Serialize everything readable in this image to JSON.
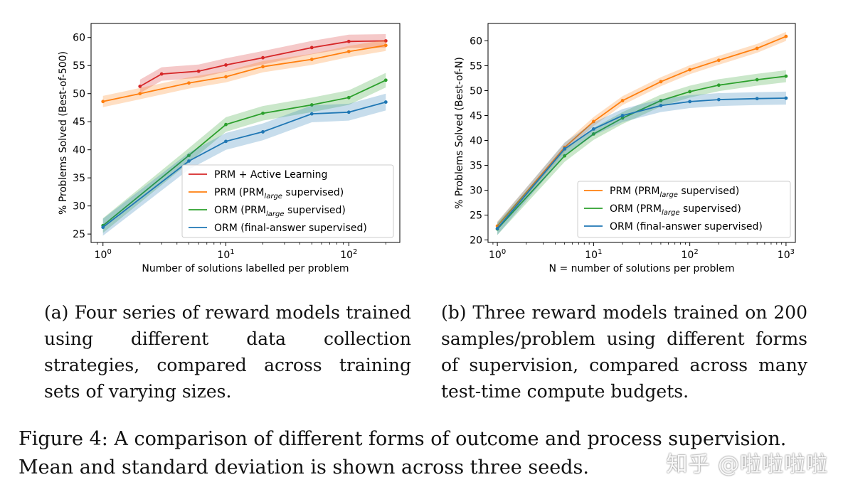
{
  "chart_data": [
    {
      "type": "line",
      "id": "a",
      "xscale": "log",
      "xlim": [
        0.8,
        260
      ],
      "ylim": [
        23.5,
        62.5
      ],
      "xticks": [
        1,
        10,
        100
      ],
      "xtick_labels": [
        "10^0",
        "10^1",
        "10^2"
      ],
      "yticks": [
        25,
        30,
        35,
        40,
        45,
        50,
        55,
        60
      ],
      "xlabel": "Number of solutions labelled per problem",
      "ylabel": "% Problems Solved (Best-of-500)",
      "legend_position": "lower-right",
      "series": [
        {
          "name": "PRM + Active Learning",
          "color": "#d62728",
          "x": [
            2,
            3,
            6,
            10,
            20,
            50,
            100,
            200
          ],
          "y": [
            51.3,
            53.5,
            54.0,
            55.1,
            56.4,
            58.2,
            59.3,
            59.4
          ],
          "band": 1.2
        },
        {
          "name": "PRM (PRMlarge supervised)",
          "color": "#ff7f0e",
          "x": [
            1,
            2,
            5,
            10,
            20,
            50,
            100,
            200
          ],
          "y": [
            48.6,
            50.0,
            51.9,
            53.0,
            54.8,
            56.1,
            57.5,
            58.6
          ],
          "band": 1.0
        },
        {
          "name": "ORM (PRMlarge supervised)",
          "color": "#2ca02c",
          "x": [
            1,
            5,
            10,
            20,
            50,
            100,
            200
          ],
          "y": [
            26.5,
            39.0,
            44.5,
            46.5,
            48.0,
            49.3,
            52.4
          ],
          "band": 1.3
        },
        {
          "name": "ORM (final-answer supervised)",
          "color": "#1f77b4",
          "x": [
            1,
            5,
            10,
            20,
            50,
            100,
            200
          ],
          "y": [
            26.2,
            38.0,
            41.5,
            43.2,
            46.4,
            46.7,
            48.5
          ],
          "band": 1.5
        }
      ]
    },
    {
      "type": "line",
      "id": "b",
      "xscale": "log",
      "xlim": [
        0.8,
        1250
      ],
      "ylim": [
        19.5,
        63.5
      ],
      "xticks": [
        1,
        10,
        100,
        1000
      ],
      "xtick_labels": [
        "10^0",
        "10^1",
        "10^2",
        "10^3"
      ],
      "yticks": [
        20,
        25,
        30,
        35,
        40,
        45,
        50,
        55,
        60
      ],
      "xlabel": "N = number of solutions per problem",
      "ylabel": "% Problems Solved (Best-of-N)",
      "legend_position": "lower-right",
      "series": [
        {
          "name": "PRM (PRMlarge supervised)",
          "color": "#ff7f0e",
          "x": [
            1,
            5,
            10,
            20,
            50,
            100,
            200,
            500,
            1000
          ],
          "y": [
            22.8,
            38.6,
            43.8,
            48.0,
            51.8,
            54.2,
            56.1,
            58.5,
            60.9
          ],
          "band": 0.9
        },
        {
          "name": "ORM (PRMlarge supervised)",
          "color": "#2ca02c",
          "x": [
            1,
            5,
            10,
            20,
            50,
            100,
            200,
            500,
            1000
          ],
          "y": [
            22.2,
            36.9,
            41.3,
            44.5,
            48.0,
            49.8,
            51.1,
            52.2,
            52.9
          ],
          "band": 1.2
        },
        {
          "name": "ORM (final-answer supervised)",
          "color": "#1f77b4",
          "x": [
            1,
            5,
            10,
            20,
            50,
            100,
            200,
            500,
            1000
          ],
          "y": [
            22.3,
            38.3,
            42.3,
            45.0,
            47.0,
            47.8,
            48.2,
            48.4,
            48.5
          ],
          "band": 1.3
        }
      ]
    }
  ],
  "legend_labels": {
    "prm_active": "PRM + Active Learning",
    "prm_prefix": "PRM (PRM",
    "orm_prefix": "ORM (PRM",
    "sub_large": "large",
    "suffix_supervised": " supervised)",
    "orm_final": "ORM (final-answer supervised)"
  },
  "caption_a": "(a) Four series of reward models trained using different data collection strategies, compared across training sets of varying sizes.",
  "caption_b": "(b) Three reward models trained on 200 samples/problem using different forms of supervision, compared across many test-time compute budgets.",
  "figure_caption": "Figure 4: A comparison of different forms of outcome and process supervision. Mean and standard deviation is shown across three seeds.",
  "watermark": "知乎 @啦啦啦啦"
}
